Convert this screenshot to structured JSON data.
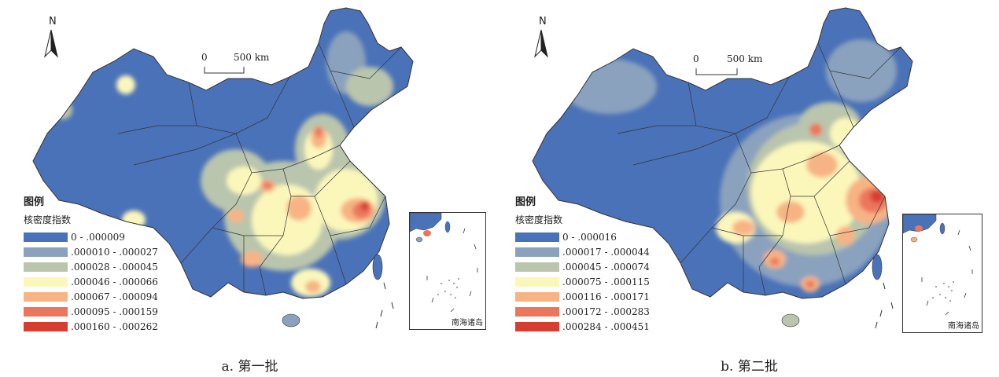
{
  "north_letter": "N",
  "scale": {
    "zero": "0",
    "label": "500 km"
  },
  "inset_label": "南海诸岛",
  "legend": {
    "title": "图例",
    "subtitle": "核密度指数"
  },
  "colors": {
    "class1": "#4a72b8",
    "class2": "#8aa2be",
    "class3": "#b9c5ad",
    "class4": "#fbf7bb",
    "class5": "#f7b383",
    "class6": "#ec765c",
    "class7": "#d73e30",
    "boundary": "#333333",
    "sea": "#ffffff"
  },
  "panels": [
    {
      "caption": "a. 第一批",
      "legend_ranges": [
        "0 - .000009",
        ".000010 - .000027",
        ".000028 - .000045",
        ".000046 - .000066",
        ".000067 - .000094",
        ".000095 - .000159",
        ".000160 - .000262"
      ]
    },
    {
      "caption": "b. 第二批",
      "legend_ranges": [
        "0 - .000016",
        ".000017 - .000044",
        ".000045 - .000074",
        ".000075 - .000115",
        ".000116 - .000171",
        ".000172 - .000283",
        ".000284 - .000451"
      ]
    }
  ]
}
